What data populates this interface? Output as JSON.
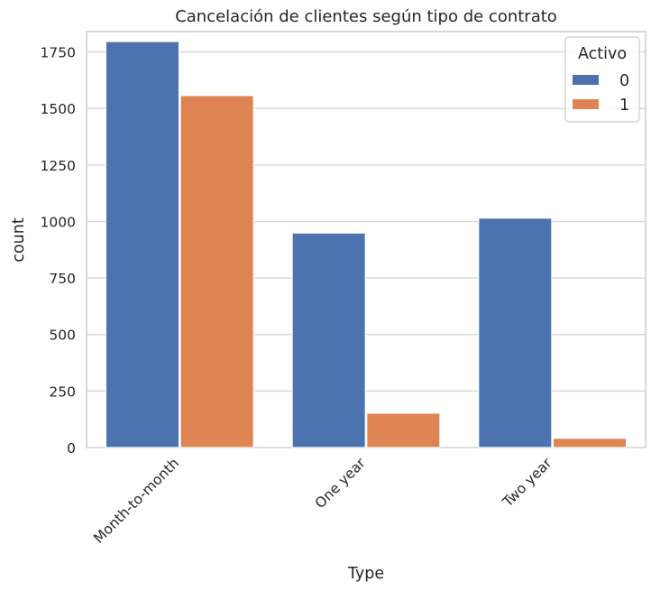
{
  "chart_data": {
    "type": "bar",
    "title": "Cancelación de clientes según tipo de contrato",
    "xlabel": "Type",
    "ylabel": "count",
    "categories": [
      "Month-to-month",
      "One year",
      "Two year"
    ],
    "series": [
      {
        "name": "0",
        "color": "#4c72b0",
        "values": [
          1796,
          949,
          1015
        ]
      },
      {
        "name": "1",
        "color": "#dd8452",
        "values": [
          1557,
          152,
          41
        ]
      }
    ],
    "ylim": [
      0,
      1840
    ],
    "yticks": [
      0,
      250,
      500,
      750,
      1000,
      1250,
      1500,
      1750
    ],
    "grid": true,
    "legend": {
      "title": "Activo",
      "placement": "top-right"
    },
    "xtick_rotation": "45 degrees"
  }
}
